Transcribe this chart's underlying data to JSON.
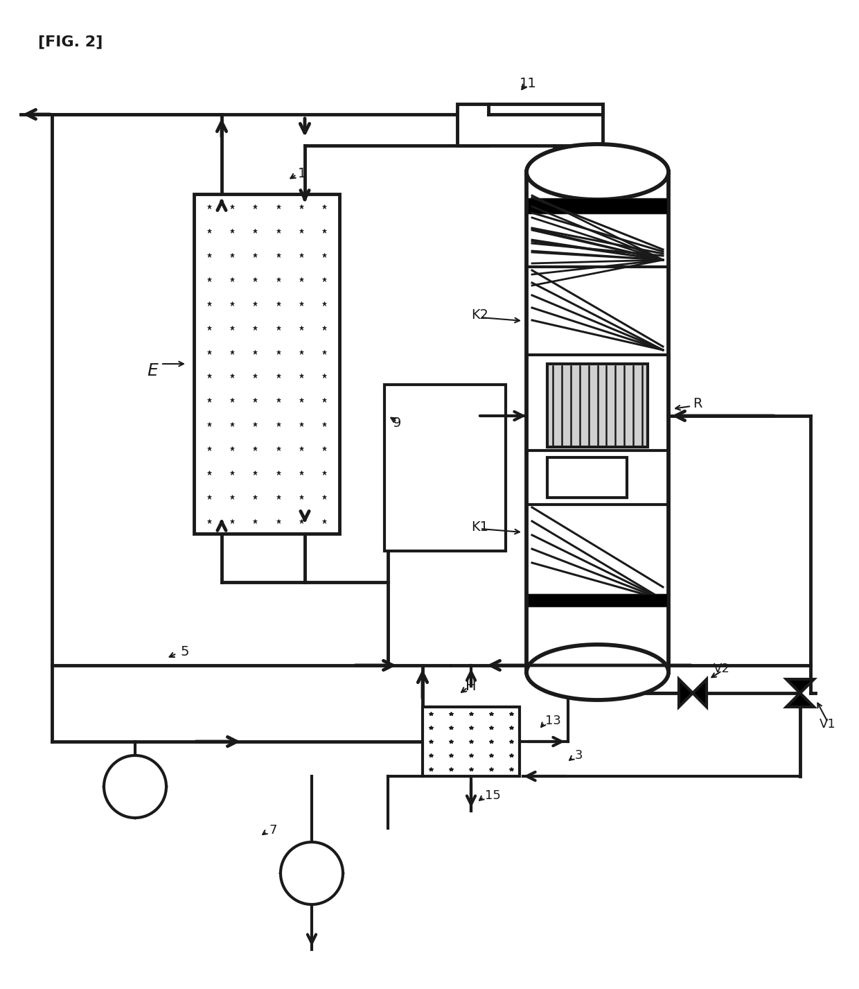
{
  "bg": "#ffffff",
  "lc": "#1a1a1a",
  "lw": 3.0,
  "lw_thin": 1.8,
  "fig_label": "[FIG. 2]",
  "labels": [
    "1",
    "5",
    "7",
    "9",
    "11",
    "E",
    "H",
    "K1",
    "K2",
    "R",
    "V1",
    "V2",
    "3",
    "13",
    "15"
  ]
}
